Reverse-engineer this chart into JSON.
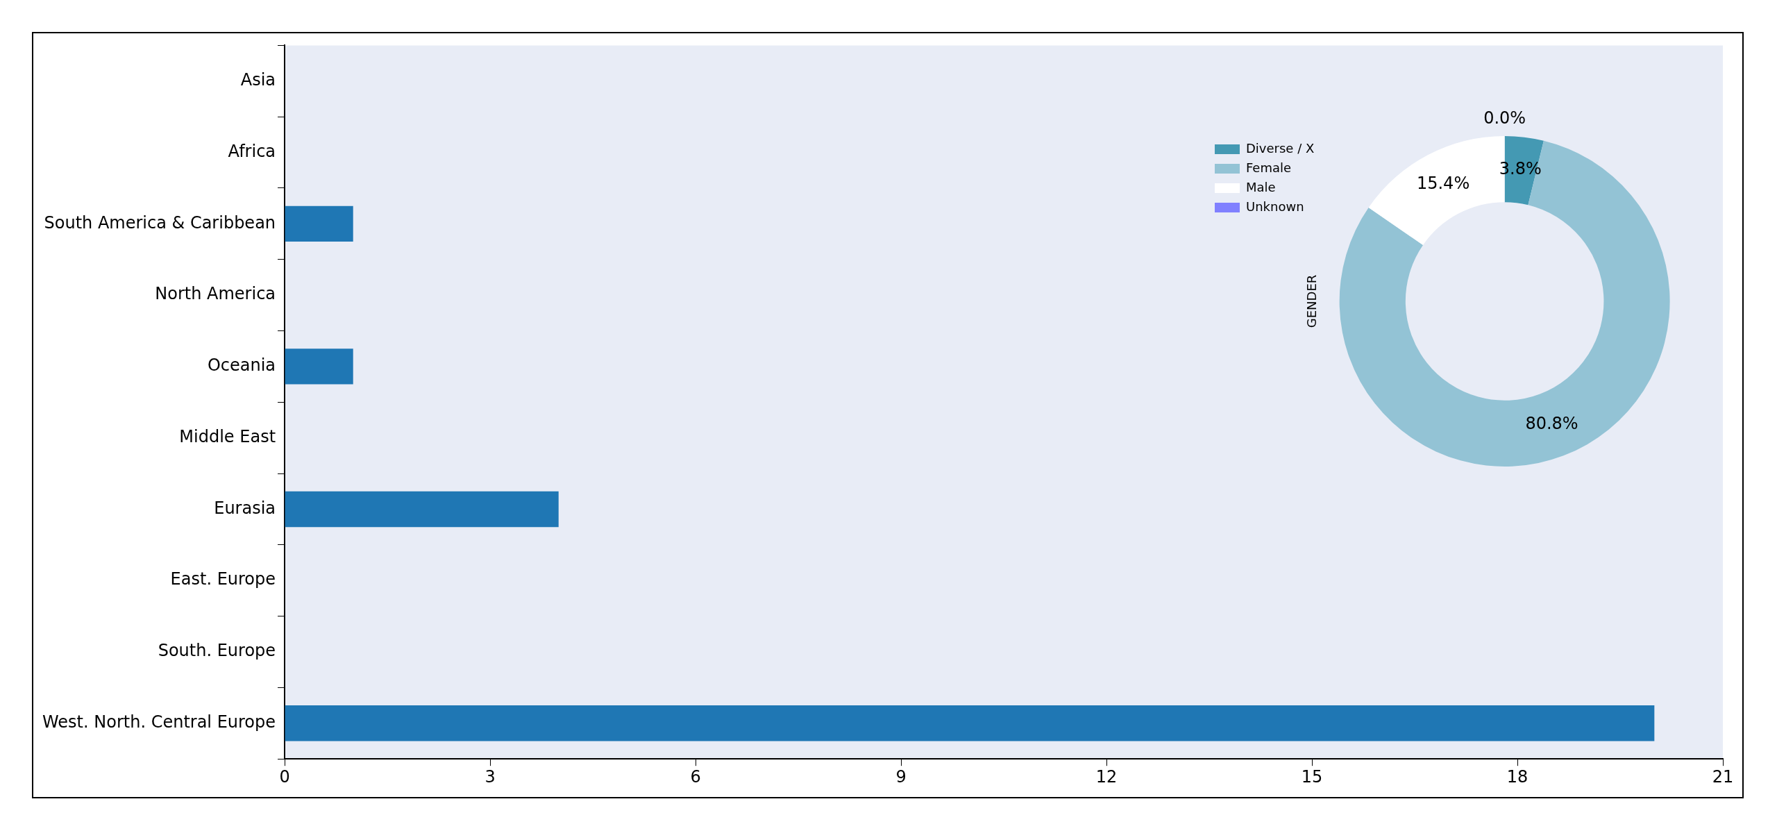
{
  "chart_data": [
    {
      "type": "bar",
      "orientation": "horizontal",
      "categories": [
        "Asia",
        "Africa",
        "South America & Caribbean",
        "North America",
        "Oceania",
        "Middle East",
        "Eurasia",
        "East. Europe",
        "South. Europe",
        "West. North. Central Europe"
      ],
      "values": [
        0,
        0,
        1,
        0,
        1,
        0,
        4,
        0,
        0,
        20
      ],
      "color": "#1f77b4",
      "xlim": [
        0,
        21
      ],
      "xticks": [
        0,
        3,
        6,
        9,
        12,
        15,
        18,
        21
      ],
      "grid": false,
      "legend": false
    },
    {
      "type": "donut",
      "ylabel": "GENDER",
      "categories": [
        "Diverse / X",
        "Female",
        "Male",
        "Unknown"
      ],
      "values": [
        3.8,
        80.8,
        15.4,
        0.0
      ],
      "colors": [
        "#4499b3",
        "#93c3d5",
        "#ffffff",
        "#8080ff"
      ],
      "value_labels": [
        "3.8%",
        "80.8%",
        "15.4%",
        "0.0%"
      ],
      "legend": "top left"
    }
  ]
}
